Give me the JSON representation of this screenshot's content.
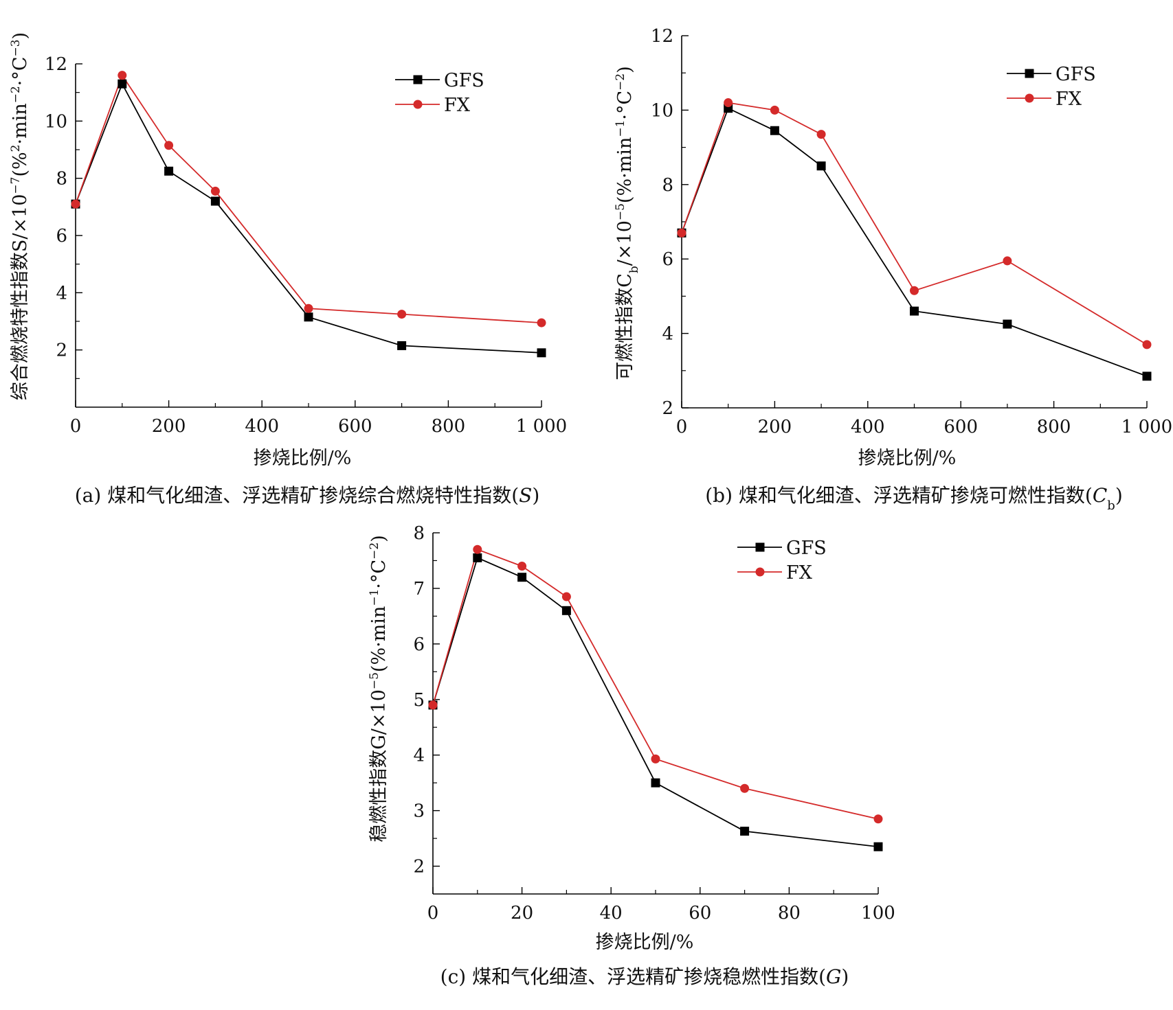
{
  "chart_data": [
    {
      "type": "line",
      "panel": "a",
      "caption": "(a) 煤和气化细渣、浮选精矿掺烧综合燃烧特性指数(S)",
      "xlabel": "掺烧比例/%",
      "ylabel": "综合燃烧特性指数S/×10⁻⁷(%²·min⁻²·℃⁻³)",
      "xlim": [
        0,
        1000
      ],
      "ylim": [
        0,
        12
      ],
      "xticks": [
        0,
        200,
        400,
        600,
        800,
        1000
      ],
      "xtick_labels": [
        "0",
        "200",
        "400",
        "600",
        "800",
        "1 000"
      ],
      "yticks": [
        2,
        4,
        6,
        8,
        10,
        12
      ],
      "legend_position": "top-right",
      "x": [
        0,
        100,
        200,
        300,
        500,
        700,
        1000
      ],
      "series": [
        {
          "name": "GFS",
          "color": "#000000",
          "marker": "square",
          "values": [
            7.1,
            11.3,
            8.25,
            7.2,
            3.15,
            2.15,
            1.9
          ]
        },
        {
          "name": "FX",
          "color": "#d42a2a",
          "marker": "circle",
          "values": [
            7.1,
            11.6,
            9.15,
            7.55,
            3.45,
            3.25,
            2.95
          ]
        }
      ]
    },
    {
      "type": "line",
      "panel": "b",
      "caption": "(b) 煤和气化细渣、浮选精矿掺烧可燃性指数(Cb)",
      "xlabel": "掺烧比例/%",
      "ylabel": "可燃性指数Cb/×10⁻⁵(%·min⁻¹·℃⁻²)",
      "xlim": [
        0,
        1000
      ],
      "ylim": [
        2,
        12
      ],
      "xticks": [
        0,
        200,
        400,
        600,
        800,
        1000
      ],
      "xtick_labels": [
        "0",
        "200",
        "400",
        "600",
        "800",
        "1 000"
      ],
      "yticks": [
        2,
        4,
        6,
        8,
        10,
        12
      ],
      "legend_position": "top-right",
      "x": [
        0,
        100,
        200,
        300,
        500,
        700,
        1000
      ],
      "series": [
        {
          "name": "GFS",
          "color": "#000000",
          "marker": "square",
          "values": [
            6.7,
            10.05,
            9.45,
            8.5,
            4.6,
            4.25,
            2.85
          ]
        },
        {
          "name": "FX",
          "color": "#d42a2a",
          "marker": "circle",
          "values": [
            6.7,
            10.2,
            10.0,
            9.35,
            5.15,
            5.95,
            3.7
          ]
        }
      ]
    },
    {
      "type": "line",
      "panel": "c",
      "caption": "(c) 煤和气化细渣、浮选精矿掺烧稳燃性指数(G)",
      "xlabel": "掺烧比例/%",
      "ylabel": "稳燃性指数G/×10⁻⁵(%·min⁻¹·℃⁻²)",
      "xlim": [
        0,
        100
      ],
      "ylim": [
        1.5,
        8
      ],
      "xticks": [
        0,
        20,
        40,
        60,
        80,
        100
      ],
      "xtick_labels": [
        "0",
        "20",
        "40",
        "60",
        "80",
        "100"
      ],
      "yticks": [
        2,
        3,
        4,
        5,
        6,
        7,
        8
      ],
      "legend_position": "top-right",
      "x": [
        0,
        10,
        20,
        30,
        50,
        70,
        100
      ],
      "series": [
        {
          "name": "GFS",
          "color": "#000000",
          "marker": "square",
          "values": [
            4.9,
            7.55,
            7.2,
            6.6,
            3.5,
            2.63,
            2.35
          ]
        },
        {
          "name": "FX",
          "color": "#d42a2a",
          "marker": "circle",
          "values": [
            4.9,
            7.7,
            7.4,
            6.85,
            3.93,
            3.4,
            2.85
          ]
        }
      ]
    }
  ]
}
